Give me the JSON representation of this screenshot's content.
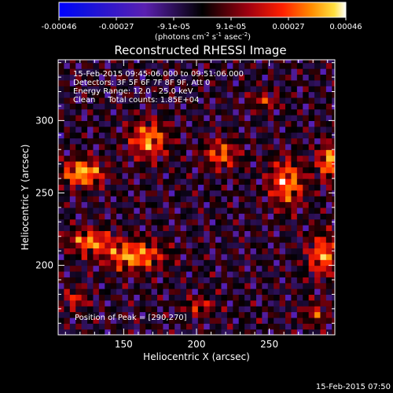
{
  "chart_data": {
    "type": "heatmap",
    "title": "Reconstructed RHESSI Image",
    "xlabel": "Heliocentric X (arcsec)",
    "ylabel": "Heliocentric Y (arcsec)",
    "xlim": [
      105,
      295
    ],
    "ylim": [
      152,
      342
    ],
    "xticks": [
      150,
      200,
      250
    ],
    "yticks": [
      200,
      250,
      300
    ],
    "colorbar": {
      "min": -0.00046,
      "max": 0.00046,
      "tick_labels": [
        "-0.00046",
        "-0.00027",
        "-9.1e-05",
        "9.1e-05",
        "0.00027",
        "0.00046"
      ],
      "label_main": "(photons cm",
      "label_sup1": "-2",
      "label_mid1": " s",
      "label_sup2": "-1",
      "label_mid2": " asec",
      "label_sup3": "-2",
      "label_end": ")"
    },
    "info_lines": [
      "15-Feb-2015 09:45:06.000 to 09:51:06.000",
      "Detectors: 3F 5F 6F 7F 8F 9F, Att 0",
      "Energy Range: 12.0 - 25.0 keV",
      "Clean     Total counts: 1.85E+04"
    ],
    "peak_label": "Position of Peak = [290,270]",
    "peak_position": [
      290,
      270
    ],
    "timestamp": "15-Feb-2015 07:50",
    "grid": false
  }
}
